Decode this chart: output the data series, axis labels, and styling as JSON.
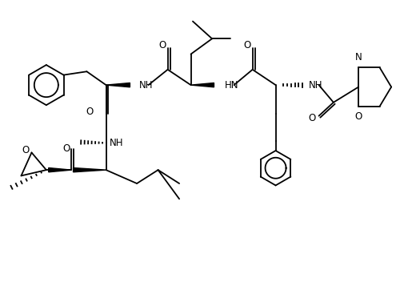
{
  "figsize": [
    5.06,
    3.52
  ],
  "dpi": 100,
  "bg_color": "white",
  "line_color": "black",
  "lw": 1.3,
  "fs": 8.5,
  "xlim": [
    0,
    10.5
  ],
  "ylim": [
    0,
    7.3
  ]
}
